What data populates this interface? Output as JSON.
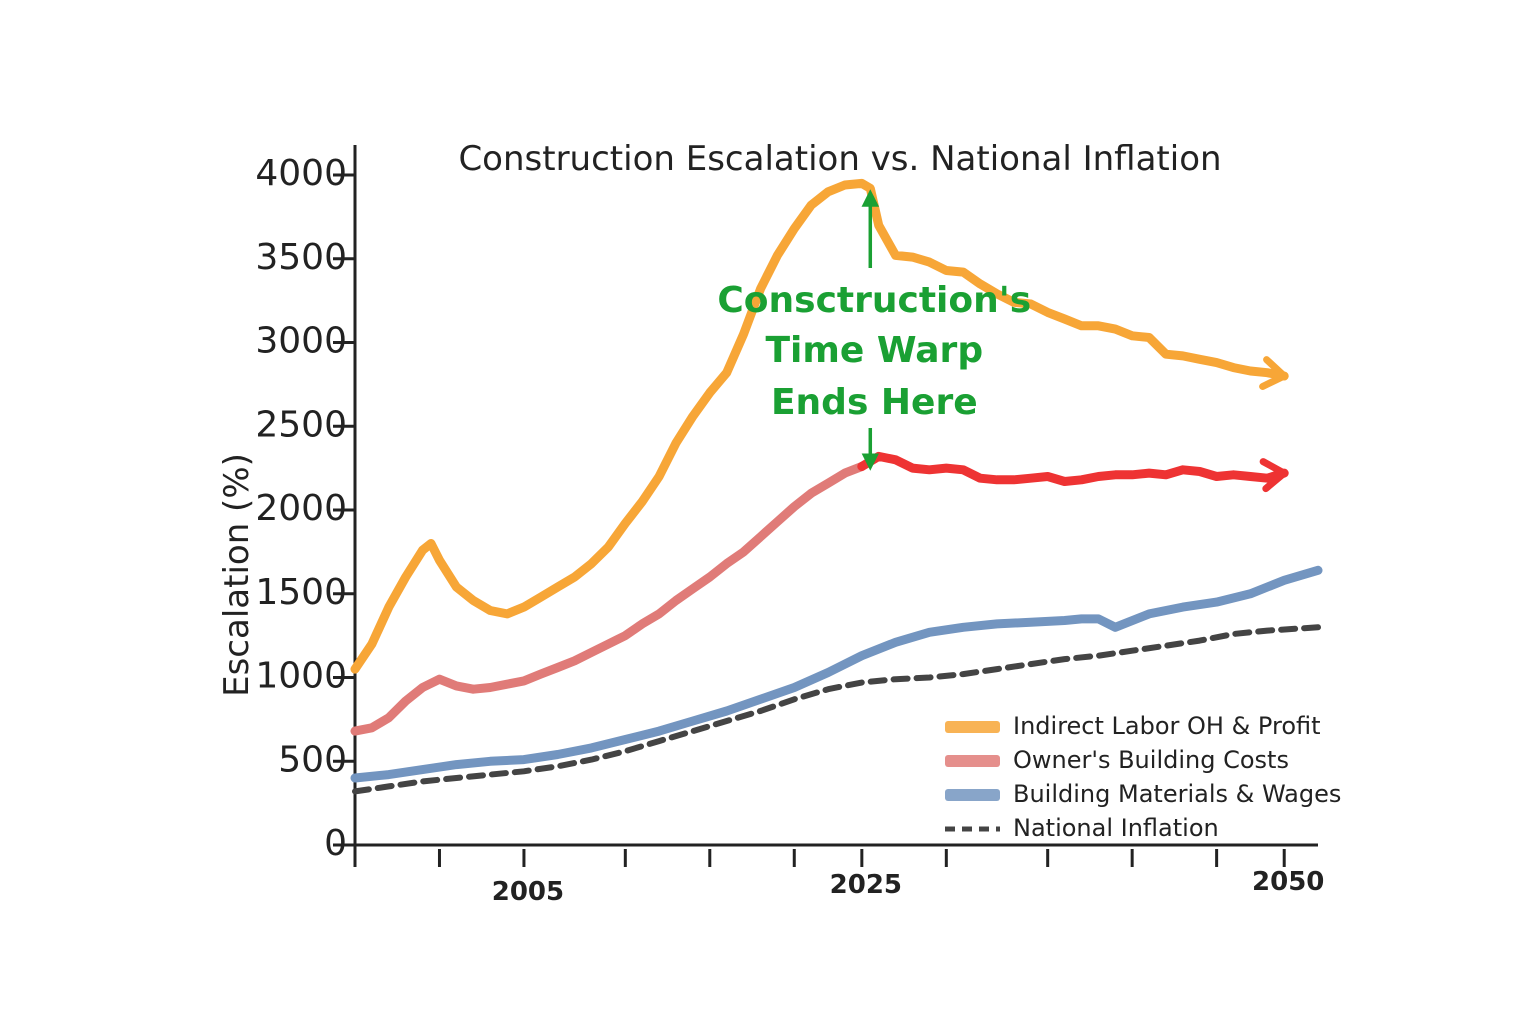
{
  "chart_data": {
    "type": "line",
    "title": "Construction Escalation vs. National Inflation",
    "xlabel": "",
    "ylabel": "Escalation (%)",
    "xlim": [
      1995,
      2052
    ],
    "ylim": [
      0,
      4000
    ],
    "x_ticks_labeled": [
      2005,
      2025,
      2050
    ],
    "x_tick_labels": [
      "2005",
      "2025",
      "2050"
    ],
    "x_ticks_minor": [
      1995,
      2000,
      2005,
      2011,
      2016,
      2021,
      2025,
      2030,
      2036,
      2041,
      2046,
      2050
    ],
    "y_ticks": [
      0,
      500,
      1000,
      1500,
      2000,
      2500,
      3000,
      3500,
      4000
    ],
    "y_tick_labels": [
      "0",
      "500",
      "1000",
      "1500",
      "2000",
      "2500",
      "3000",
      "3500",
      "4000"
    ],
    "grid": false,
    "legend_position": "bottom-right",
    "series": [
      {
        "name": "Indirect Labor OH & Profit",
        "color": "#f7a637",
        "style": "solid",
        "x": [
          1995,
          1996,
          1997,
          1998,
          1999,
          1999.5,
          2000,
          2001,
          2002,
          2003,
          2004,
          2005,
          2006,
          2007,
          2008,
          2009,
          2010,
          2011,
          2012,
          2013,
          2014,
          2015,
          2016,
          2017,
          2018,
          2019,
          2020,
          2021,
          2022,
          2023,
          2024,
          2025,
          2025.5,
          2026,
          2027,
          2028,
          2029,
          2030,
          2031,
          2032,
          2033,
          2034,
          2035,
          2036,
          2037,
          2038,
          2039,
          2040,
          2041,
          2042,
          2043,
          2044,
          2045,
          2046,
          2047,
          2048,
          2049,
          2050
        ],
        "y": [
          1050,
          1200,
          1420,
          1600,
          1760,
          1800,
          1700,
          1540,
          1460,
          1400,
          1380,
          1420,
          1480,
          1540,
          1600,
          1680,
          1780,
          1920,
          2050,
          2200,
          2400,
          2560,
          2700,
          2820,
          3050,
          3320,
          3520,
          3680,
          3820,
          3900,
          3940,
          3950,
          3920,
          3700,
          3520,
          3510,
          3480,
          3430,
          3420,
          3350,
          3290,
          3240,
          3230,
          3180,
          3140,
          3100,
          3100,
          3080,
          3040,
          3030,
          2930,
          2920,
          2900,
          2880,
          2850,
          2830,
          2820,
          2800
        ]
      },
      {
        "name": "Owner's Building Costs",
        "color": "#e07b78",
        "color_after_2025": "#ee3333",
        "style": "solid",
        "x": [
          1995,
          1996,
          1997,
          1998,
          1999,
          2000,
          2001,
          2002,
          2003,
          2004,
          2005,
          2006,
          2007,
          2008,
          2009,
          2010,
          2011,
          2012,
          2013,
          2014,
          2015,
          2016,
          2017,
          2018,
          2019,
          2020,
          2021,
          2022,
          2023,
          2024,
          2025,
          2026,
          2027,
          2028,
          2029,
          2030,
          2031,
          2032,
          2033,
          2034,
          2035,
          2036,
          2037,
          2038,
          2039,
          2040,
          2041,
          2042,
          2043,
          2044,
          2045,
          2046,
          2047,
          2048,
          2049,
          2050
        ],
        "y": [
          680,
          700,
          760,
          860,
          940,
          990,
          950,
          930,
          940,
          960,
          980,
          1020,
          1060,
          1100,
          1150,
          1200,
          1250,
          1320,
          1380,
          1460,
          1530,
          1600,
          1680,
          1750,
          1840,
          1930,
          2020,
          2100,
          2160,
          2220,
          2260,
          2320,
          2300,
          2250,
          2240,
          2250,
          2240,
          2190,
          2180,
          2180,
          2190,
          2200,
          2170,
          2180,
          2200,
          2210,
          2210,
          2220,
          2210,
          2240,
          2230,
          2200,
          2210,
          2200,
          2190,
          2220
        ]
      },
      {
        "name": "Building Materials & Wages",
        "color": "#7395c0",
        "style": "solid",
        "x": [
          1995,
          1997,
          1999,
          2001,
          2003,
          2005,
          2007,
          2009,
          2011,
          2013,
          2015,
          2017,
          2019,
          2021,
          2023,
          2025,
          2027,
          2029,
          2031,
          2033,
          2035,
          2037,
          2038,
          2039,
          2040,
          2042,
          2044,
          2046,
          2048,
          2050,
          2052
        ],
        "y": [
          400,
          420,
          450,
          480,
          500,
          510,
          540,
          580,
          630,
          680,
          740,
          800,
          870,
          940,
          1030,
          1130,
          1210,
          1270,
          1300,
          1320,
          1330,
          1340,
          1350,
          1350,
          1300,
          1380,
          1420,
          1450,
          1500,
          1580,
          1640
        ]
      },
      {
        "name": "National Inflation",
        "color": "#444444",
        "style": "dashed",
        "x": [
          1995,
          1997,
          1999,
          2001,
          2003,
          2005,
          2007,
          2009,
          2011,
          2013,
          2015,
          2017,
          2019,
          2021,
          2023,
          2025,
          2027,
          2029,
          2031,
          2033,
          2035,
          2037,
          2039,
          2041,
          2043,
          2045,
          2047,
          2049,
          2052
        ],
        "y": [
          320,
          350,
          380,
          400,
          420,
          440,
          470,
          510,
          560,
          620,
          680,
          740,
          800,
          870,
          930,
          970,
          990,
          1000,
          1020,
          1050,
          1080,
          1110,
          1130,
          1160,
          1190,
          1220,
          1260,
          1280,
          1300
        ]
      }
    ],
    "annotations": [
      {
        "text_lines": [
          "Consctruction's",
          "Time Warp",
          "Ends Here"
        ],
        "color": "#1aa033",
        "x": 2025.5
      }
    ]
  }
}
